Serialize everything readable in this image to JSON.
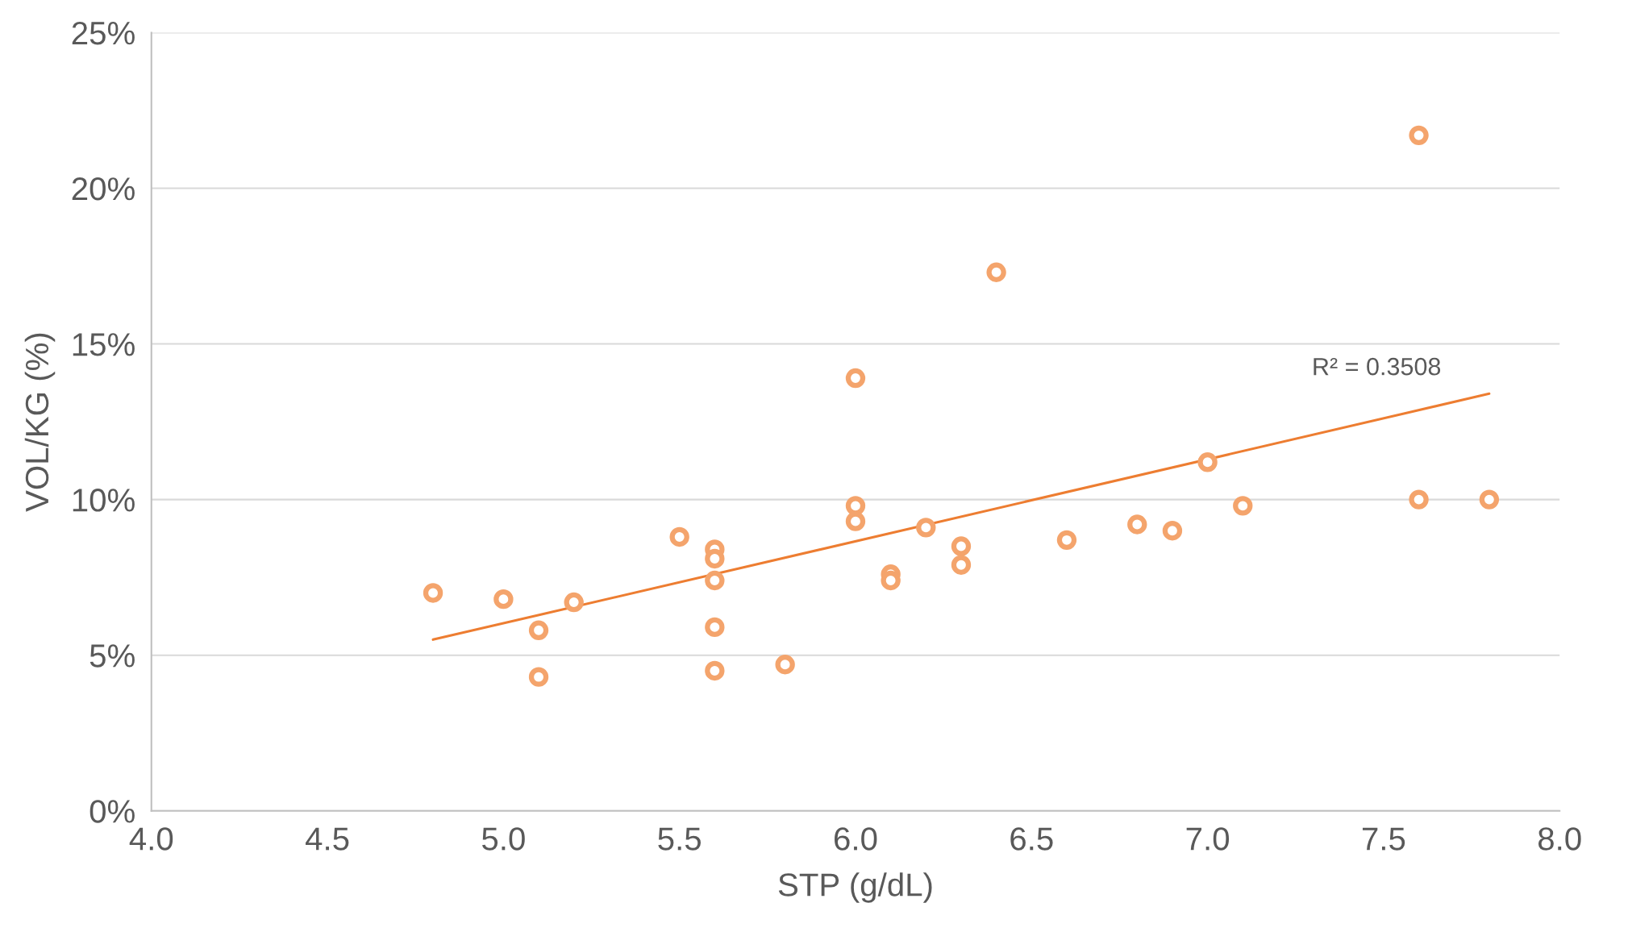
{
  "chart_data": {
    "type": "scatter",
    "xlabel": "STP (g/dL)",
    "ylabel": "VOL/KG (%)",
    "xlim": [
      4.0,
      8.0
    ],
    "xticks": [
      {
        "value": 4.0,
        "label": "4.0"
      },
      {
        "value": 4.5,
        "label": "4.5"
      },
      {
        "value": 5.0,
        "label": "5.0"
      },
      {
        "value": 5.5,
        "label": "5.5"
      },
      {
        "value": 6.0,
        "label": "6.0"
      },
      {
        "value": 6.5,
        "label": "6.5"
      },
      {
        "value": 7.0,
        "label": "7.0"
      },
      {
        "value": 7.5,
        "label": "7.5"
      },
      {
        "value": 8.0,
        "label": "8.0"
      }
    ],
    "ylim": [
      0,
      25
    ],
    "yticks": [
      {
        "value": 0,
        "label": "0%"
      },
      {
        "value": 5,
        "label": "5%"
      },
      {
        "value": 10,
        "label": "10%"
      },
      {
        "value": 15,
        "label": "15%"
      },
      {
        "value": 20,
        "label": "20%"
      },
      {
        "value": 25,
        "label": "25%"
      }
    ],
    "grid": "y",
    "series": [
      {
        "marker": "circle",
        "color": "#f4a46c",
        "x": [
          4.8,
          5.0,
          5.1,
          5.1,
          5.2,
          5.5,
          5.6,
          5.6,
          5.6,
          5.6,
          5.6,
          5.8,
          6.0,
          6.0,
          6.0,
          6.1,
          6.1,
          6.2,
          6.3,
          6.3,
          6.4,
          6.6,
          6.8,
          6.9,
          7.0,
          7.1,
          7.6,
          7.6,
          7.8
        ],
        "values": [
          7.0,
          6.8,
          5.8,
          4.3,
          6.7,
          8.8,
          8.4,
          8.1,
          7.4,
          5.9,
          4.5,
          4.7,
          13.9,
          9.8,
          9.3,
          7.6,
          7.4,
          9.1,
          8.5,
          7.9,
          17.3,
          8.7,
          9.2,
          9.0,
          11.2,
          9.8,
          21.7,
          10.0,
          10.0
        ]
      },
      {
        "type": "line",
        "marker": "none",
        "line_style": "solid",
        "color": "#ed7d31",
        "x": [
          4.8,
          7.8
        ],
        "values": [
          5.5,
          13.4
        ]
      }
    ],
    "annotations": [
      "R² = 0.3508"
    ]
  }
}
